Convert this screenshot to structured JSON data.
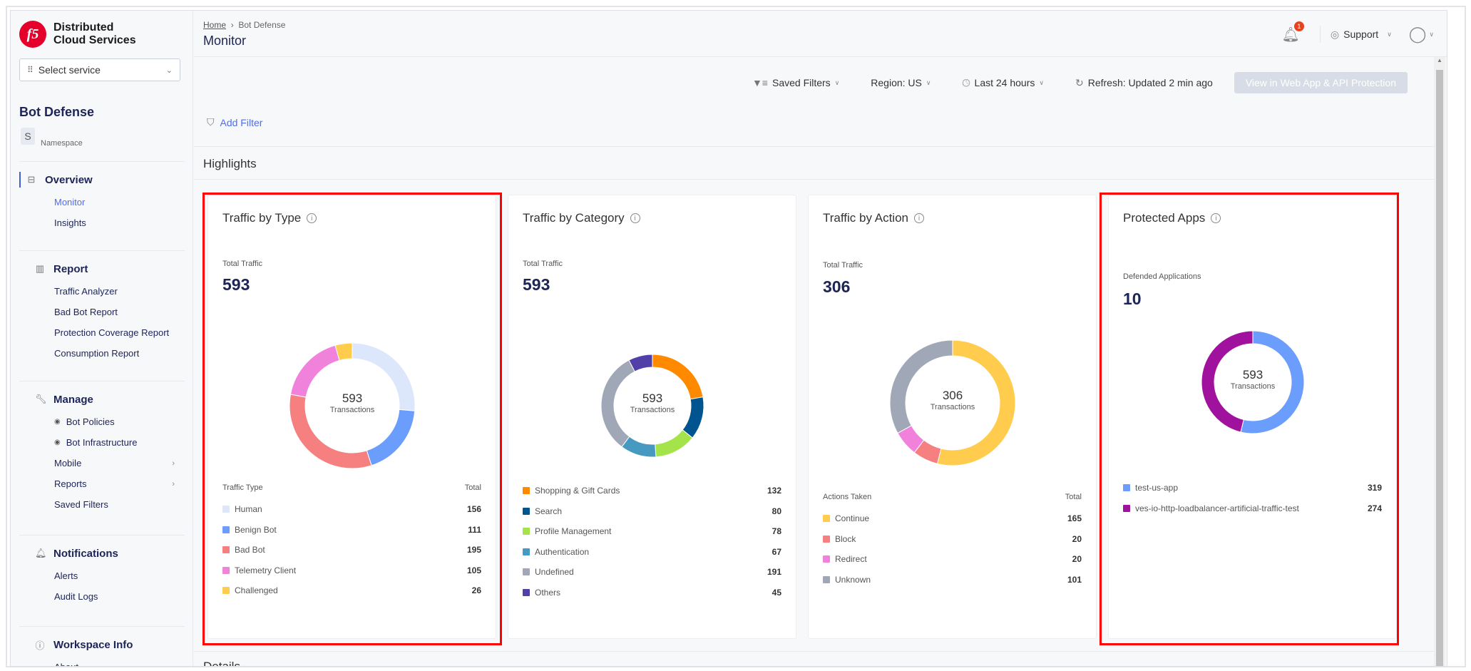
{
  "brand": {
    "logo": "f5",
    "name_line1": "Distributed",
    "name_line2": "Cloud Services"
  },
  "sidebar": {
    "service_select": {
      "value": "Select service"
    },
    "service_title": "Bot Defense",
    "namespace": {
      "badge": "S",
      "label": "Namespace"
    },
    "sections": [
      {
        "label": "Overview",
        "icon": "overview-icon",
        "items": [
          {
            "label": "Monitor",
            "current": true
          },
          {
            "label": "Insights"
          }
        ]
      },
      {
        "label": "Report",
        "icon": "bar-chart-icon",
        "items": [
          {
            "label": "Traffic Analyzer"
          },
          {
            "label": "Bad Bot Report"
          },
          {
            "label": "Protection Coverage Report"
          },
          {
            "label": "Consumption Report"
          }
        ]
      },
      {
        "label": "Manage",
        "icon": "wrench-icon",
        "items": [
          {
            "label": "Bot Policies",
            "eye": true
          },
          {
            "label": "Bot Infrastructure",
            "eye": true
          },
          {
            "label": "Mobile",
            "arrow": true
          },
          {
            "label": "Reports",
            "arrow": true
          },
          {
            "label": "Saved Filters"
          }
        ]
      },
      {
        "label": "Notifications",
        "icon": "bell-icon",
        "items": [
          {
            "label": "Alerts"
          },
          {
            "label": "Audit Logs"
          }
        ]
      },
      {
        "label": "Workspace Info",
        "icon": "info-icon",
        "items": [
          {
            "label": "About"
          }
        ]
      }
    ]
  },
  "header": {
    "breadcrumb": [
      "Home",
      "Bot Defense"
    ],
    "title": "Monitor",
    "notification_count": "1",
    "support_label": "Support"
  },
  "toolbar": {
    "saved_filters": "Saved Filters",
    "region": "Region: US",
    "time_range": "Last 24 hours",
    "refresh": "Refresh: Updated 2 min ago",
    "view_button": "View in Web App & API Protection",
    "add_filter": "Add Filter"
  },
  "highlights_title": "Highlights",
  "details_title": "Details",
  "chart_data": [
    {
      "type": "pie",
      "title": "Traffic by Type",
      "kpi_label": "Total Traffic",
      "kpi_value": "593",
      "center_value": "593",
      "center_label": "Transactions",
      "legend_header": "Traffic Type",
      "legend_total": "Total",
      "categories": [
        "Human",
        "Benign Bot",
        "Bad Bot",
        "Telemetry Client",
        "Challenged"
      ],
      "values": [
        156,
        111,
        195,
        105,
        26
      ],
      "colors": [
        "#dce7fb",
        "#6b9dfc",
        "#f67f7f",
        "#f082dc",
        "#ffcc4d"
      ]
    },
    {
      "type": "pie",
      "title": "Traffic by Category",
      "kpi_label": "Total Traffic",
      "kpi_value": "593",
      "center_value": "593",
      "center_label": "Transactions",
      "categories": [
        "Shopping & Gift Cards",
        "Search",
        "Profile Management",
        "Authentication",
        "Undefined",
        "Others"
      ],
      "values": [
        132,
        80,
        78,
        67,
        191,
        45
      ],
      "colors": [
        "#ff8a00",
        "#005591",
        "#a5e34a",
        "#4699c0",
        "#a0a8b8",
        "#5140a8"
      ]
    },
    {
      "type": "pie",
      "title": "Traffic by Action",
      "kpi_label": "Total Traffic",
      "kpi_value": "306",
      "center_value": "306",
      "center_label": "Transactions",
      "legend_header": "Actions Taken",
      "legend_total": "Total",
      "categories": [
        "Continue",
        "Block",
        "Redirect",
        "Unknown"
      ],
      "values": [
        165,
        20,
        20,
        101
      ],
      "colors": [
        "#ffcc4d",
        "#f67f7f",
        "#f082dc",
        "#a0a8b8"
      ]
    },
    {
      "type": "pie",
      "title": "Protected Apps",
      "kpi_label": "Defended Applications",
      "kpi_value": "10",
      "center_value": "593",
      "center_label": "Transactions",
      "categories": [
        "test-us-app",
        "ves-io-http-loadbalancer-artificial-traffic-test"
      ],
      "values": [
        319,
        274
      ],
      "colors": [
        "#6b9dfc",
        "#a0129e"
      ]
    }
  ]
}
